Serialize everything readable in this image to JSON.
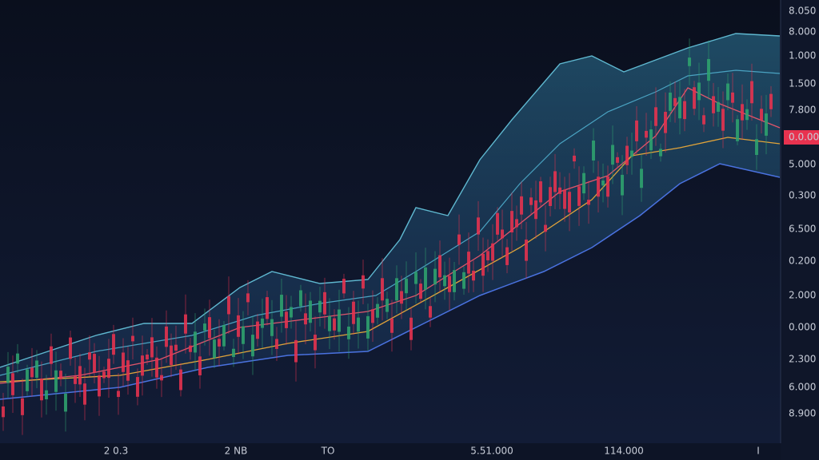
{
  "price_axis": {
    "labels": [
      "8.050",
      "8.000",
      "1.000",
      "1.500",
      "7.800",
      "0.0.00",
      "5.000",
      "0.300",
      "6.500",
      "0.200",
      "2.000",
      "0.000",
      "2.300",
      "6.000",
      "8.900"
    ],
    "current": 5
  },
  "time_axis": {
    "labels": [
      "2 0.3",
      "2 NB",
      "TO",
      "5.51.000",
      "114.000",
      "I"
    ]
  }
}
